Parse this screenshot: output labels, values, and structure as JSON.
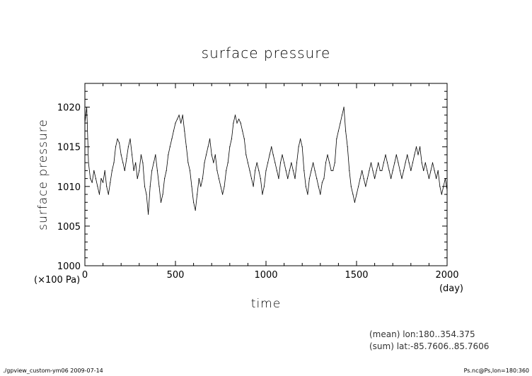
{
  "chart_data": {
    "type": "line",
    "title": "surface pressure",
    "xlabel": "time",
    "ylabel": "surface pressure",
    "x_unit": "(day)",
    "y_unit": "(×100 Pa)",
    "xlim": [
      0,
      2000
    ],
    "ylim": [
      1000,
      1023
    ],
    "x_ticks": [
      0,
      500,
      1000,
      1500,
      2000
    ],
    "y_ticks": [
      1000,
      1005,
      1010,
      1015,
      1020
    ],
    "grid": false,
    "series": [
      {
        "x": [
          0,
          10,
          20,
          30,
          40,
          50,
          60,
          70,
          80,
          90,
          100,
          110,
          120,
          130,
          140,
          150,
          160,
          170,
          180,
          190,
          200,
          210,
          220,
          230,
          240,
          250,
          260,
          270,
          280,
          290,
          300,
          310,
          320,
          330,
          340,
          350,
          360,
          370,
          380,
          390,
          400,
          410,
          420,
          430,
          440,
          450,
          460,
          470,
          480,
          490,
          500,
          510,
          520,
          530,
          540,
          550,
          560,
          570,
          580,
          590,
          600,
          610,
          620,
          630,
          640,
          650,
          660,
          670,
          680,
          690,
          700,
          710,
          720,
          730,
          740,
          750,
          760,
          770,
          780,
          790,
          800,
          810,
          820,
          830,
          840,
          850,
          860,
          870,
          880,
          890,
          900,
          910,
          920,
          930,
          940,
          950,
          960,
          970,
          980,
          990,
          1000,
          1010,
          1020,
          1030,
          1040,
          1050,
          1060,
          1070,
          1080,
          1090,
          1100,
          1110,
          1120,
          1130,
          1140,
          1150,
          1160,
          1170,
          1180,
          1190,
          1200,
          1210,
          1220,
          1230,
          1240,
          1250,
          1260,
          1270,
          1280,
          1290,
          1300,
          1310,
          1320,
          1330,
          1340,
          1350,
          1360,
          1370,
          1380,
          1390,
          1400,
          1410,
          1420,
          1430,
          1440,
          1450,
          1460,
          1470,
          1480,
          1490,
          1500,
          1510,
          1520,
          1530,
          1540,
          1550,
          1560,
          1570,
          1580,
          1590,
          1600,
          1610,
          1620,
          1630,
          1640,
          1650,
          1660,
          1670,
          1680,
          1690,
          1700,
          1710,
          1720,
          1730,
          1740,
          1750,
          1760,
          1770,
          1780,
          1790,
          1800,
          1810,
          1820,
          1830,
          1840,
          1850,
          1860,
          1870,
          1880,
          1890,
          1900,
          1910,
          1920,
          1930,
          1940,
          1950,
          1960,
          1970,
          1980,
          1990,
          2000
        ],
        "values": [
          1018,
          1020,
          1013,
          1011,
          1010.5,
          1012,
          1011,
          1010,
          1009,
          1011,
          1010.5,
          1012,
          1010,
          1009,
          1010.5,
          1012,
          1013,
          1015,
          1016,
          1015.5,
          1014,
          1013,
          1012,
          1013.5,
          1015,
          1016,
          1014,
          1012,
          1013,
          1011,
          1012,
          1014,
          1013,
          1010,
          1009,
          1006.5,
          1010,
          1012,
          1013,
          1014,
          1012,
          1010,
          1008,
          1009,
          1011,
          1012,
          1014,
          1015,
          1016,
          1017,
          1018,
          1018.5,
          1019,
          1018,
          1019,
          1017,
          1015,
          1013,
          1012,
          1010,
          1008,
          1007,
          1009,
          1011,
          1010,
          1011,
          1013,
          1014,
          1015,
          1016,
          1014,
          1013,
          1014,
          1012,
          1011,
          1010,
          1009,
          1010,
          1012,
          1013,
          1015,
          1016,
          1018,
          1019,
          1018,
          1018.5,
          1018,
          1017,
          1016,
          1014,
          1013,
          1012,
          1011,
          1010,
          1012,
          1013,
          1012,
          1011,
          1009,
          1010,
          1012,
          1013,
          1014,
          1015,
          1014,
          1013,
          1012,
          1011,
          1013,
          1014,
          1013,
          1012,
          1011,
          1012,
          1013,
          1012,
          1011,
          1013,
          1015,
          1016,
          1015,
          1012,
          1010,
          1009,
          1011,
          1012,
          1013,
          1012,
          1011,
          1010,
          1009,
          1010.5,
          1011,
          1013,
          1014,
          1013,
          1012,
          1012,
          1013,
          1016,
          1017,
          1018,
          1019,
          1020,
          1017,
          1015,
          1012,
          1010,
          1009,
          1008,
          1009,
          1010,
          1011,
          1012,
          1011,
          1010,
          1011,
          1012,
          1013,
          1012,
          1011,
          1012,
          1013,
          1012,
          1012,
          1013,
          1014,
          1013,
          1012,
          1011,
          1012,
          1013,
          1014,
          1013,
          1012,
          1011,
          1012,
          1013,
          1014,
          1013,
          1012,
          1013,
          1014,
          1015,
          1014,
          1015,
          1013,
          1012,
          1013,
          1012,
          1011,
          1012,
          1013,
          1012,
          1011,
          1012,
          1010,
          1009,
          1010,
          1011,
          1009.5
        ]
      }
    ]
  },
  "annotations": {
    "mean": "(mean) lon:180..354.375",
    "sum": "(sum) lat:-85.7606..85.7606"
  },
  "footer": {
    "left": "./gpview_custom-ym06  2009-07-14",
    "right": "Ps.nc@Ps,lon=180:360"
  },
  "style": {
    "line_color": "#000000",
    "axis_color": "#000000"
  }
}
